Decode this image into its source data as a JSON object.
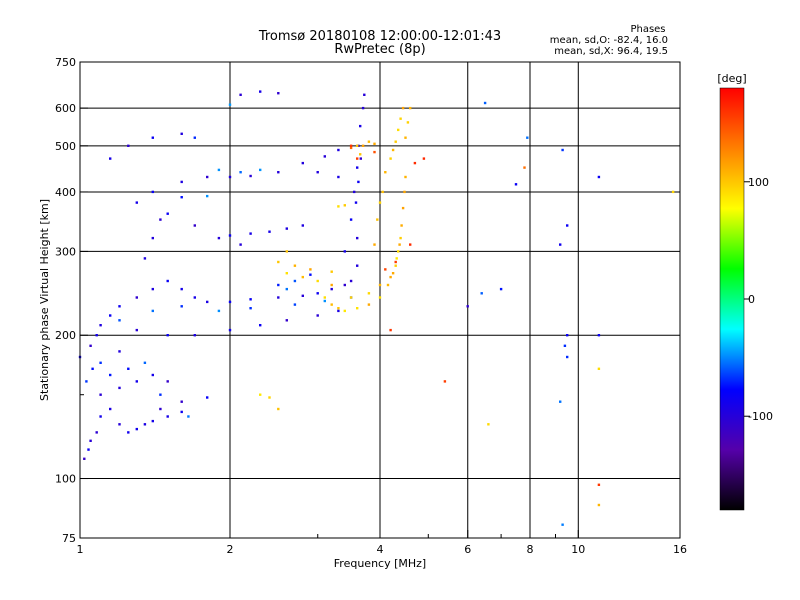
{
  "chart_data": {
    "type": "scatter",
    "title": "Tromsø 20180108 12:00:00-12:01:43",
    "subtitle": "RwPretec (8p)",
    "xlabel": "Frequency [MHz]",
    "ylabel": "Stationary phase Virtual Height [km]",
    "x_scale": "log",
    "y_scale": "log",
    "xlim": [
      1,
      16
    ],
    "ylim": [
      75,
      750
    ],
    "grid": true,
    "x_ticks": [
      {
        "value": 1,
        "label": "1"
      },
      {
        "value": 2,
        "label": "2"
      },
      {
        "value": 4,
        "label": "4"
      },
      {
        "value": 6,
        "label": "6"
      },
      {
        "value": 8,
        "label": "8"
      },
      {
        "value": 10,
        "label": "10"
      },
      {
        "value": 16,
        "label": "16"
      }
    ],
    "x_minor_ticks": [
      3,
      5,
      7,
      9
    ],
    "y_ticks": [
      75,
      100,
      200,
      300,
      400,
      500,
      600,
      750
    ],
    "y_minor_ticks": [
      150
    ],
    "stats": {
      "heading": "Phases",
      "line_o": "mean, sd,O: -82.4, 16.0",
      "line_x": "mean, sd,X:  96.4, 19.5"
    },
    "colorbar": {
      "label": "[deg]",
      "range": [
        -180,
        180
      ],
      "ticks": [
        100,
        0,
        -100
      ],
      "colors": [
        "#000000",
        "#5500aa",
        "#0000ff",
        "#00ffff",
        "#00ff00",
        "#ffff00",
        "#ff8000",
        "#ff0000"
      ]
    },
    "series": [
      {
        "mode": "O",
        "phase_deg": -95,
        "points": [
          [
            1.02,
            110
          ],
          [
            1.04,
            115
          ],
          [
            1.05,
            120
          ],
          [
            1.08,
            125
          ],
          [
            1.1,
            135
          ],
          [
            1.15,
            140
          ],
          [
            1.2,
            130
          ],
          [
            1.25,
            125
          ],
          [
            1.3,
            127
          ],
          [
            1.35,
            130
          ],
          [
            1.4,
            132
          ],
          [
            1.5,
            135
          ],
          [
            1.6,
            138
          ],
          [
            1.1,
            150
          ],
          [
            1.2,
            155
          ],
          [
            1.3,
            160
          ],
          [
            1.4,
            165
          ],
          [
            1.5,
            160
          ],
          [
            1.08,
            200
          ],
          [
            1.1,
            210
          ],
          [
            1.15,
            220
          ],
          [
            1.2,
            230
          ],
          [
            1.3,
            240
          ],
          [
            1.4,
            250
          ],
          [
            1.5,
            260
          ],
          [
            1.6,
            250
          ],
          [
            1.7,
            240
          ],
          [
            1.8,
            235
          ],
          [
            2.0,
            235
          ],
          [
            2.2,
            238
          ],
          [
            2.5,
            240
          ],
          [
            2.8,
            242
          ],
          [
            3.0,
            245
          ],
          [
            3.2,
            250
          ],
          [
            3.4,
            255
          ],
          [
            3.5,
            260
          ],
          [
            3.6,
            280
          ],
          [
            1.3,
            205
          ],
          [
            1.5,
            200
          ],
          [
            1.7,
            200
          ],
          [
            2.0,
            205
          ],
          [
            2.3,
            210
          ],
          [
            2.6,
            215
          ],
          [
            3.0,
            220
          ],
          [
            3.3,
            225
          ],
          [
            1.35,
            290
          ],
          [
            1.4,
            320
          ],
          [
            1.45,
            350
          ],
          [
            1.5,
            360
          ],
          [
            1.7,
            340
          ],
          [
            1.9,
            320
          ],
          [
            2.1,
            310
          ],
          [
            1.3,
            380
          ],
          [
            1.4,
            400
          ],
          [
            1.6,
            420
          ],
          [
            1.8,
            430
          ],
          [
            2.0,
            430
          ],
          [
            2.2,
            432
          ],
          [
            2.5,
            440
          ],
          [
            2.8,
            460
          ],
          [
            3.1,
            475
          ],
          [
            3.3,
            490
          ],
          [
            1.15,
            470
          ],
          [
            1.25,
            500
          ],
          [
            1.4,
            520
          ],
          [
            1.6,
            530
          ],
          [
            2.0,
            324
          ],
          [
            2.2,
            327
          ],
          [
            2.4,
            330
          ],
          [
            2.6,
            335
          ],
          [
            2.8,
            340
          ],
          [
            3.4,
            300
          ],
          [
            3.5,
            350
          ],
          [
            3.55,
            400
          ],
          [
            3.6,
            450
          ],
          [
            3.62,
            500
          ],
          [
            3.65,
            550
          ],
          [
            3.7,
            600
          ],
          [
            3.72,
            640
          ],
          [
            3.6,
            320
          ],
          [
            3.58,
            380
          ],
          [
            3.62,
            420
          ],
          [
            3.66,
            470
          ],
          [
            1.0,
            180
          ],
          [
            1.05,
            190
          ],
          [
            1.2,
            185
          ],
          [
            1.45,
            140
          ],
          [
            1.6,
            145
          ],
          [
            1.8,
            148
          ],
          [
            2.1,
            640
          ],
          [
            2.3,
            650
          ],
          [
            2.5,
            645
          ],
          [
            3.0,
            440
          ],
          [
            3.3,
            430
          ],
          [
            6.0,
            230
          ],
          [
            7.5,
            415
          ],
          [
            9.5,
            340
          ],
          [
            11,
            430
          ],
          [
            11,
            200
          ],
          [
            9.5,
            200
          ],
          [
            9.2,
            310
          ]
        ]
      },
      {
        "mode": "O-scattered",
        "phase_deg": -60,
        "points": [
          [
            1.03,
            160
          ],
          [
            1.06,
            170
          ],
          [
            1.1,
            175
          ],
          [
            1.15,
            165
          ],
          [
            1.25,
            170
          ],
          [
            1.35,
            175
          ],
          [
            1.45,
            150
          ],
          [
            1.65,
            135
          ],
          [
            1.2,
            215
          ],
          [
            1.4,
            225
          ],
          [
            1.6,
            230
          ],
          [
            1.9,
            225
          ],
          [
            2.2,
            228
          ],
          [
            2.7,
            232
          ],
          [
            3.1,
            236
          ],
          [
            2.5,
            255
          ],
          [
            2.7,
            260
          ],
          [
            2.9,
            268
          ],
          [
            1.9,
            445
          ],
          [
            2.1,
            440
          ],
          [
            2.3,
            445
          ],
          [
            1.6,
            390
          ],
          [
            1.8,
            392
          ],
          [
            1.7,
            520
          ],
          [
            2.0,
            610
          ],
          [
            6.5,
            615
          ],
          [
            7.9,
            520
          ],
          [
            9.3,
            490
          ],
          [
            9.4,
            190
          ],
          [
            9.5,
            180
          ],
          [
            6.4,
            245
          ],
          [
            7.0,
            250
          ],
          [
            9.3,
            80
          ],
          [
            9.2,
            145
          ],
          [
            2.6,
            250
          ],
          [
            3.5,
            240
          ]
        ]
      },
      {
        "mode": "X",
        "phase_deg": 100,
        "points": [
          [
            3.4,
            225
          ],
          [
            3.6,
            228
          ],
          [
            3.8,
            232
          ],
          [
            4.0,
            240
          ],
          [
            4.15,
            255
          ],
          [
            4.25,
            270
          ],
          [
            4.32,
            290
          ],
          [
            4.38,
            310
          ],
          [
            4.42,
            340
          ],
          [
            4.45,
            370
          ],
          [
            4.48,
            400
          ],
          [
            4.5,
            430
          ],
          [
            3.5,
            240
          ],
          [
            3.8,
            245
          ],
          [
            4.0,
            255
          ],
          [
            4.2,
            265
          ],
          [
            4.3,
            280
          ],
          [
            4.35,
            300
          ],
          [
            4.4,
            320
          ],
          [
            3.9,
            310
          ],
          [
            3.95,
            350
          ],
          [
            4.0,
            380
          ],
          [
            4.05,
            400
          ],
          [
            4.1,
            440
          ],
          [
            4.2,
            470
          ],
          [
            4.25,
            490
          ],
          [
            4.3,
            510
          ],
          [
            4.35,
            540
          ],
          [
            4.4,
            570
          ],
          [
            4.45,
            600
          ],
          [
            3.7,
            500
          ],
          [
            3.8,
            510
          ],
          [
            3.9,
            505
          ],
          [
            3.2,
            255
          ],
          [
            3.0,
            260
          ],
          [
            2.8,
            265
          ],
          [
            2.6,
            270
          ],
          [
            2.5,
            285
          ],
          [
            2.6,
            300
          ],
          [
            2.7,
            280
          ],
          [
            2.9,
            275
          ],
          [
            3.2,
            272
          ],
          [
            3.3,
            373
          ],
          [
            3.4,
            375
          ],
          [
            3.1,
            240
          ],
          [
            3.2,
            232
          ],
          [
            3.3,
            228
          ],
          [
            3.6,
            500
          ],
          [
            3.65,
            480
          ],
          [
            4.6,
            600
          ],
          [
            4.55,
            560
          ],
          [
            4.5,
            520
          ],
          [
            2.3,
            150
          ],
          [
            2.4,
            148
          ],
          [
            2.5,
            140
          ],
          [
            11.0,
            170
          ],
          [
            11.0,
            88
          ],
          [
            15.5,
            400
          ],
          [
            6.6,
            130
          ]
        ]
      },
      {
        "mode": "X-scattered",
        "phase_deg": 150,
        "points": [
          [
            3.6,
            470
          ],
          [
            3.9,
            485
          ],
          [
            3.5,
            495
          ],
          [
            4.2,
            205
          ],
          [
            3.5,
            500
          ],
          [
            4.6,
            310
          ],
          [
            4.7,
            460
          ],
          [
            5.4,
            160
          ],
          [
            4.9,
            470
          ],
          [
            7.8,
            450
          ],
          [
            11,
            97
          ],
          [
            4.1,
            275
          ],
          [
            4.3,
            285
          ]
        ]
      }
    ]
  }
}
